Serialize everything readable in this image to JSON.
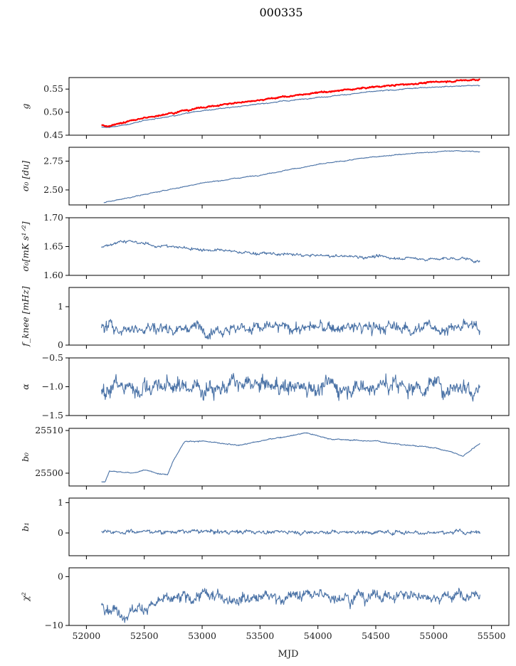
{
  "figure": {
    "title": "000335",
    "xlabel": "MJD"
  },
  "colors": {
    "main": "#4a72a6",
    "overlay": "#ff0000",
    "axis": "#000000"
  },
  "chart_data": {
    "type": "line",
    "x_range": [
      52100,
      55400
    ],
    "xlim": [
      51850,
      55650
    ],
    "xticks": [
      52000,
      52500,
      53000,
      53500,
      54000,
      54500,
      55000,
      55500
    ],
    "xtick_labels": [
      "52000",
      "52500",
      "53000",
      "53500",
      "54000",
      "54500",
      "55000",
      "55500"
    ],
    "panels": [
      {
        "id": "g",
        "ylabel": "g",
        "ylim": [
          0.45,
          0.575
        ],
        "yticks": [
          0.45,
          0.5,
          0.55
        ],
        "ytick_labels": [
          "0.45",
          "0.50",
          "0.55"
        ],
        "series": [
          {
            "color": "main",
            "noise": 0.0008,
            "points": [
              [
                52130,
                0.468
              ],
              [
                52200,
                0.466
              ],
              [
                52400,
                0.476
              ],
              [
                52700,
                0.49
              ],
              [
                53000,
                0.503
              ],
              [
                53500,
                0.518
              ],
              [
                54000,
                0.532
              ],
              [
                54500,
                0.545
              ],
              [
                55000,
                0.555
              ],
              [
                55400,
                0.558
              ]
            ]
          },
          {
            "color": "overlay",
            "noise": 0.0012,
            "width": 2.2,
            "points": [
              [
                52130,
                0.472
              ],
              [
                52200,
                0.47
              ],
              [
                52400,
                0.482
              ],
              [
                52700,
                0.497
              ],
              [
                53000,
                0.51
              ],
              [
                53500,
                0.527
              ],
              [
                54000,
                0.542
              ],
              [
                54500,
                0.555
              ],
              [
                55000,
                0.565
              ],
              [
                55400,
                0.571
              ]
            ]
          }
        ]
      },
      {
        "id": "sigma0_du",
        "ylabel": "σ₀ [du]",
        "ylim": [
          2.37,
          2.87
        ],
        "yticks": [
          2.5,
          2.75
        ],
        "ytick_labels": [
          "2.50",
          "2.75"
        ],
        "series": [
          {
            "color": "main",
            "noise": 0.003,
            "points": [
              [
                52150,
                2.39
              ],
              [
                52500,
                2.46
              ],
              [
                53000,
                2.56
              ],
              [
                53500,
                2.63
              ],
              [
                54000,
                2.72
              ],
              [
                54500,
                2.79
              ],
              [
                55000,
                2.83
              ],
              [
                55200,
                2.84
              ],
              [
                55400,
                2.83
              ]
            ]
          }
        ]
      },
      {
        "id": "sigma0_mk",
        "ylabel": "σ₀[mK s¹ᐟ²]",
        "ylim": [
          1.6,
          1.7
        ],
        "yticks": [
          1.6,
          1.65,
          1.7
        ],
        "ytick_labels": [
          "1.60",
          "1.65",
          "1.70"
        ],
        "series": [
          {
            "color": "main",
            "noise": 0.002,
            "points": [
              [
                52130,
                1.65
              ],
              [
                52300,
                1.66
              ],
              [
                52600,
                1.652
              ],
              [
                53000,
                1.645
              ],
              [
                53500,
                1.638
              ],
              [
                54000,
                1.634
              ],
              [
                54500,
                1.632
              ],
              [
                55000,
                1.628
              ],
              [
                55250,
                1.63
              ],
              [
                55400,
                1.623
              ]
            ]
          }
        ]
      },
      {
        "id": "fknee",
        "ylabel": "f_knee [mHz]",
        "ylim": [
          0,
          1.5
        ],
        "yticks": [
          0,
          1
        ],
        "ytick_labels": [
          "0",
          "1"
        ],
        "series": [
          {
            "color": "main",
            "noise": 0.12,
            "points": [
              [
                52130,
                0.45
              ],
              [
                55400,
                0.45
              ]
            ]
          }
        ]
      },
      {
        "id": "alpha",
        "ylabel": "α",
        "ylim": [
          -1.5,
          -0.5
        ],
        "yticks": [
          -1.5,
          -1.0,
          -0.5
        ],
        "ytick_labels": [
          "−1.5",
          "−1.0",
          "−0.5"
        ],
        "series": [
          {
            "color": "main",
            "noise": 0.12,
            "points": [
              [
                52130,
                -1.0
              ],
              [
                55400,
                -0.98
              ]
            ]
          }
        ]
      },
      {
        "id": "b0",
        "ylabel": "b₀",
        "ylim": [
          25497,
          25510.5
        ],
        "yticks": [
          25500,
          25510
        ],
        "ytick_labels": [
          "25500",
          "25510"
        ],
        "series": [
          {
            "color": "main",
            "noise": 0.1,
            "points": [
              [
                52130,
                25498
              ],
              [
                52160,
                25498
              ],
              [
                52200,
                25500.5
              ],
              [
                52400,
                25500
              ],
              [
                52500,
                25500.7
              ],
              [
                52700,
                25499.6
              ],
              [
                52750,
                25503
              ],
              [
                52850,
                25507.5
              ],
              [
                53000,
                25507.5
              ],
              [
                53300,
                25506.5
              ],
              [
                53600,
                25508
              ],
              [
                53900,
                25509.5
              ],
              [
                54100,
                25508
              ],
              [
                54500,
                25507.5
              ],
              [
                54800,
                25506.5
              ],
              [
                55000,
                25506
              ],
              [
                55150,
                25505
              ],
              [
                55250,
                25504
              ],
              [
                55400,
                25507
              ]
            ]
          }
        ]
      },
      {
        "id": "b1",
        "ylabel": "b₁",
        "ylim": [
          -0.75,
          1.15
        ],
        "yticks": [
          0,
          1
        ],
        "ytick_labels": [
          "0",
          "1"
        ],
        "series": [
          {
            "color": "main",
            "noise": 0.05,
            "points": [
              [
                52130,
                0.05
              ],
              [
                55400,
                0.02
              ]
            ]
          }
        ]
      },
      {
        "id": "chi2",
        "ylabel": "χ²",
        "ylim": [
          -10,
          1.8
        ],
        "yticks": [
          -10,
          0
        ],
        "ytick_labels": [
          "−10",
          "0"
        ],
        "series": [
          {
            "color": "main",
            "noise": 0.9,
            "points": [
              [
                52130,
                -5.5
              ],
              [
                52300,
                -7.5
              ],
              [
                52600,
                -5.5
              ],
              [
                53000,
                -4.0
              ],
              [
                53500,
                -4.2
              ],
              [
                54000,
                -3.8
              ],
              [
                54500,
                -4.0
              ],
              [
                55000,
                -3.8
              ],
              [
                55400,
                -4.0
              ]
            ]
          }
        ]
      }
    ]
  }
}
